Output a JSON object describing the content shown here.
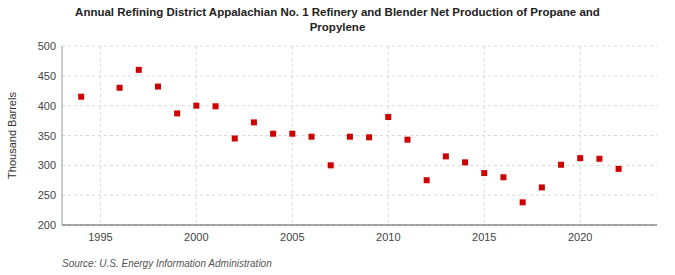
{
  "chart_data": {
    "type": "scatter",
    "title": "Annual Refining District Appalachian No. 1 Refinery and Blender Net Production of Propane and\nPropylene",
    "y_label": "Thousand Barrels",
    "source": "Source: U.S. Energy Information Administration",
    "x": [
      1994,
      1996,
      1997,
      1998,
      1999,
      2000,
      2001,
      2002,
      2003,
      2004,
      2005,
      2006,
      2007,
      2008,
      2009,
      2010,
      2011,
      2012,
      2013,
      2014,
      2015,
      2016,
      2017,
      2018,
      2019,
      2020,
      2021,
      2022
    ],
    "values": [
      415,
      430,
      460,
      432,
      387,
      400,
      399,
      345,
      372,
      353,
      353,
      348,
      300,
      348,
      347,
      381,
      343,
      275,
      315,
      305,
      287,
      280,
      238,
      263,
      301,
      312,
      311,
      294
    ],
    "color": "#cc0000",
    "marker": "square",
    "xlim": [
      1993,
      2024
    ],
    "ylim": [
      200,
      500
    ],
    "xticks": [
      1995,
      2000,
      2005,
      2010,
      2015,
      2020
    ],
    "yticks": [
      200,
      250,
      300,
      350,
      400,
      450,
      500
    ],
    "grid": true
  }
}
